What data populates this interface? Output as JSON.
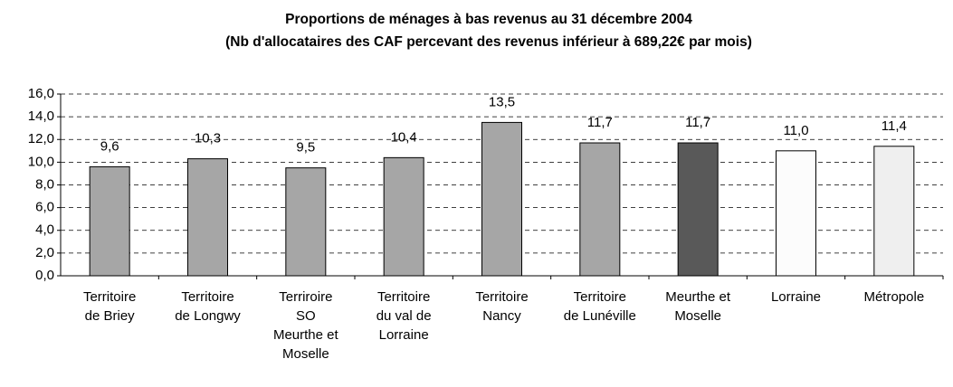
{
  "chart_data": {
    "type": "bar",
    "title": "Proportions de ménages à bas revenus au 31 décembre 2004",
    "subtitle": "(Nb d'allocataires des CAF percevant des revenus inférieur à 689,22€ par mois)",
    "categories": [
      "Territoire\nde Briey",
      "Territoire\nde Longwy",
      "Terriroire\nSO\nMeurthe et\nMoselle",
      "Territoire\ndu  val de\nLorraine",
      "Territoire\nNancy",
      "Territoire\nde Lunéville",
      "Meurthe et\nMoselle",
      "Lorraine",
      "Métropole"
    ],
    "values": [
      9.6,
      10.3,
      9.5,
      10.4,
      13.5,
      11.7,
      11.7,
      11.0,
      11.4
    ],
    "value_labels": [
      "9,6",
      "10,3",
      "9,5",
      "10,4",
      "13,5",
      "11,7",
      "11,7",
      "11,0",
      "11,4"
    ],
    "colors": [
      "#a6a6a6",
      "#a6a6a6",
      "#a6a6a6",
      "#a6a6a6",
      "#a6a6a6",
      "#a6a6a6",
      "#595959",
      "#fcfcfc",
      "#efefef"
    ],
    "ylim": [
      0,
      16
    ],
    "yticks": [
      {
        "value": 0,
        "label": "0,0"
      },
      {
        "value": 2,
        "label": "2,0"
      },
      {
        "value": 4,
        "label": "4,0"
      },
      {
        "value": 6,
        "label": "6,0"
      },
      {
        "value": 8,
        "label": "8,0"
      },
      {
        "value": 10,
        "label": "10,0"
      },
      {
        "value": 12,
        "label": "12,0"
      },
      {
        "value": 14,
        "label": "14,0"
      },
      {
        "value": 16,
        "label": "16,0"
      }
    ],
    "grid": true
  }
}
